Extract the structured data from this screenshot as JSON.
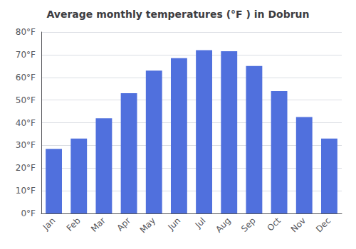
{
  "chart_data": {
    "type": "bar",
    "title": "Average monthly temperatures (°F ) in Dobrun",
    "categories": [
      "Jan",
      "Feb",
      "Mar",
      "Apr",
      "May",
      "Jun",
      "Jul",
      "Aug",
      "Sep",
      "Oct",
      "Nov",
      "Dec"
    ],
    "values": [
      28.5,
      33,
      42,
      53,
      63,
      68.5,
      72,
      71.5,
      65,
      54,
      42.5,
      33
    ],
    "ylim": [
      0,
      80
    ],
    "yticks": [
      {
        "value": 0,
        "label": "0°F"
      },
      {
        "value": 10,
        "label": "10°F"
      },
      {
        "value": 20,
        "label": "20°F"
      },
      {
        "value": 30,
        "label": "30°F"
      },
      {
        "value": 40,
        "label": "40°F"
      },
      {
        "value": 50,
        "label": "50°F"
      },
      {
        "value": 60,
        "label": "60°F"
      },
      {
        "value": 70,
        "label": "70°F"
      },
      {
        "value": 80,
        "label": "80°F"
      }
    ],
    "grid": true
  }
}
